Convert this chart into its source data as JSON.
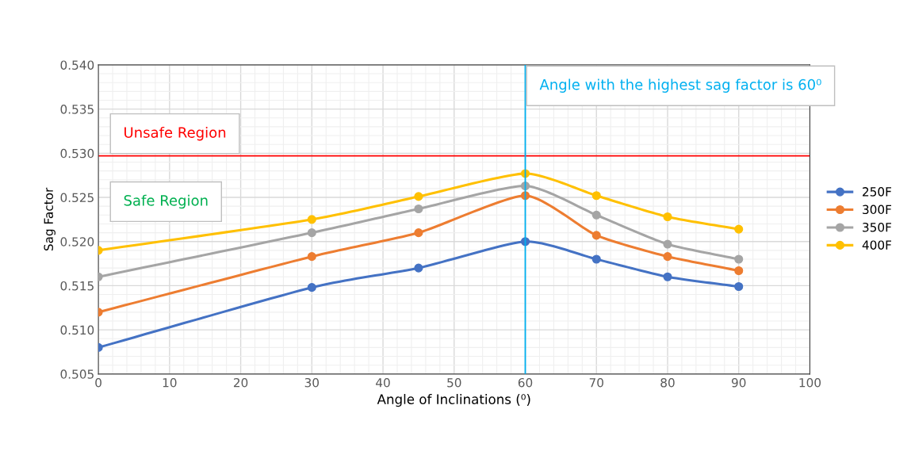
{
  "chart_data": {
    "type": "line",
    "xlabel": "Angle of Inclinations (⁰)",
    "ylabel": "Sag Factor",
    "x": [
      0,
      30,
      45,
      60,
      70,
      80,
      90
    ],
    "series": [
      {
        "name": "250F",
        "color": "#4472c4",
        "values": [
          0.508,
          0.5148,
          0.517,
          0.52,
          0.518,
          0.516,
          0.5149
        ]
      },
      {
        "name": "300F",
        "color": "#ed7d31",
        "values": [
          0.512,
          0.5183,
          0.521,
          0.5252,
          0.5207,
          0.5183,
          0.5167
        ]
      },
      {
        "name": "350F",
        "color": "#a5a5a5",
        "values": [
          0.516,
          0.521,
          0.5237,
          0.5263,
          0.523,
          0.5197,
          0.518
        ]
      },
      {
        "name": "400F",
        "color": "#ffc000",
        "values": [
          0.519,
          0.5225,
          0.5251,
          0.5277,
          0.5252,
          0.5228,
          0.5214
        ]
      }
    ],
    "xlim": [
      0,
      100
    ],
    "xticks": [
      0,
      10,
      20,
      30,
      40,
      50,
      60,
      70,
      80,
      90,
      100
    ],
    "ylim": [
      0.505,
      0.54
    ],
    "yticks": [
      {
        "value": 0.505,
        "label": "0.505"
      },
      {
        "value": 0.51,
        "label": "0.510"
      },
      {
        "value": 0.515,
        "label": "0.515"
      },
      {
        "value": 0.52,
        "label": "0.520"
      },
      {
        "value": 0.525,
        "label": "0.525"
      },
      {
        "value": 0.53,
        "label": "0.530"
      },
      {
        "value": 0.535,
        "label": "0.535"
      },
      {
        "value": 0.54,
        "label": "0.540"
      }
    ],
    "ref_lines": [
      {
        "axis": "y",
        "value": 0.5297,
        "color": "#ff0000"
      },
      {
        "axis": "x",
        "value": 60,
        "color": "#00b0f0"
      }
    ],
    "annotations": [
      "Unsafe Region",
      "Safe Region",
      "Angle with the highest sag factor is 60⁰"
    ],
    "grid": true,
    "legend": "right",
    "marker": "circle",
    "line_style": "solid"
  }
}
